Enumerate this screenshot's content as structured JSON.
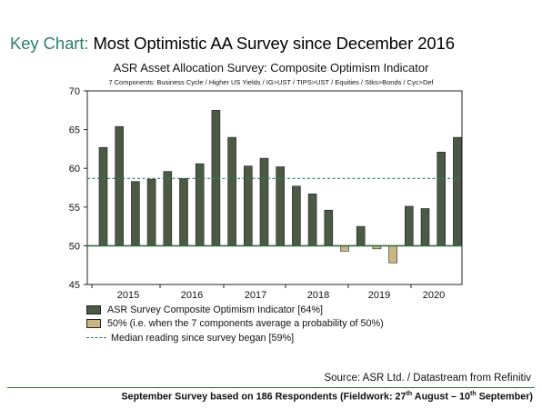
{
  "headline": {
    "prefix": "Key Chart:",
    "text": "Most Optimistic AA Survey since December 2016"
  },
  "colors": {
    "headline_accent": "#2e7d6b",
    "bar_above": "#4b5a45",
    "bar_below": "#c9b784",
    "baseline": "#2f6b3a",
    "median": "#2e7d6b"
  },
  "chart_data": {
    "type": "bar",
    "title": "ASR Asset Allocation Survey: Composite Optimism Indicator",
    "subtitle": "7 Components: Business Cycle / Higher US Yields / IG>UST / TIPS>UST / Equities / Stks>Bonds / Cyc>Def",
    "ylim": [
      45,
      70
    ],
    "yticks": [
      45,
      50,
      55,
      60,
      65,
      70
    ],
    "baseline": 50,
    "median": 58.7,
    "values": [
      62.7,
      65.4,
      58.3,
      58.6,
      59.6,
      58.7,
      60.6,
      67.5,
      64.0,
      60.3,
      61.3,
      60.2,
      57.7,
      56.7,
      54.6,
      49.3,
      52.5,
      49.6,
      47.8,
      55.1,
      54.8,
      62.1,
      64.0
    ],
    "xtick_labels": [
      "2015",
      "2016",
      "2017",
      "2018",
      "2019",
      "2020"
    ],
    "legend": [
      "ASR Survey Composite Optimism Indicator [64%]",
      "50% (i.e. when the 7 components average a probability of 50%)",
      "Median reading since survey began [59%]"
    ]
  },
  "source": "Source: ASR Ltd. / Datastream from Refinitiv",
  "footnote": {
    "part1": "September Survey based on 186 Respondents (Fieldwork: 27",
    "sup1": "th",
    "part2": " August – 10",
    "sup2": "th",
    "part3": " September)"
  }
}
